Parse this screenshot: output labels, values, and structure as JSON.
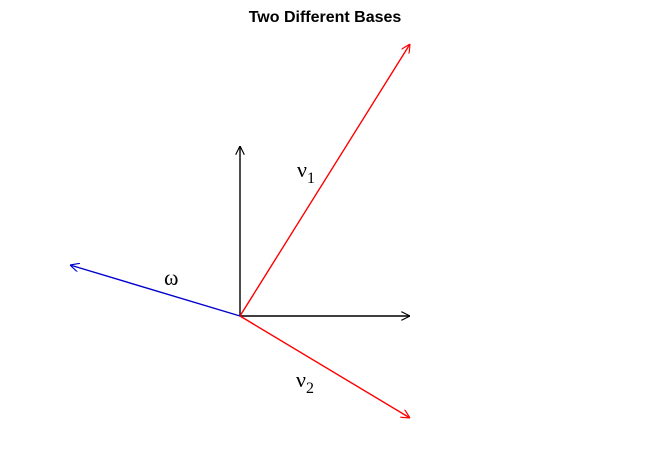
{
  "title": "Two Different Bases",
  "colors": {
    "axis": "#000000",
    "basis_v": "#ff0000",
    "omega": "#0000cc"
  },
  "vectors": [
    {
      "id": "e1",
      "components": [
        1,
        0
      ],
      "color_key": "axis",
      "label": ""
    },
    {
      "id": "e2",
      "components": [
        0,
        1
      ],
      "color_key": "axis",
      "label": ""
    },
    {
      "id": "v1",
      "components": [
        1,
        1.6
      ],
      "color_key": "basis_v",
      "label": "ν",
      "subscript": "1"
    },
    {
      "id": "v2",
      "components": [
        1,
        -0.6
      ],
      "color_key": "basis_v",
      "label": "ν",
      "subscript": "2"
    },
    {
      "id": "w",
      "components": [
        -1,
        0.3
      ],
      "color_key": "omega",
      "label": "ω"
    }
  ]
}
